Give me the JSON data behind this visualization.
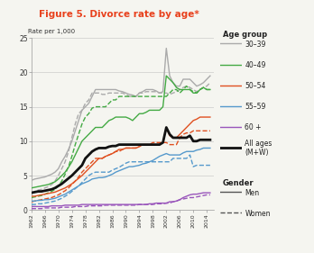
{
  "title": "Figure 5. Divorce rate by age*",
  "ylabel": "Rate per 1,000",
  "xlim": [
    1962,
    2016
  ],
  "ylim": [
    0,
    25
  ],
  "yticks": [
    0,
    5,
    10,
    15,
    20,
    25
  ],
  "xticks": [
    1962,
    1966,
    1970,
    1974,
    1978,
    1982,
    1986,
    1990,
    1994,
    1998,
    2002,
    2006,
    2010,
    2014
  ],
  "title_color": "#e8401c",
  "background_color": "#f5f5f0",
  "series": {
    "30_39_men": {
      "color": "#aaaaaa",
      "lw": 1.0,
      "ls": "-",
      "years": [
        1962,
        1963,
        1964,
        1965,
        1966,
        1967,
        1968,
        1969,
        1970,
        1971,
        1972,
        1973,
        1974,
        1975,
        1976,
        1977,
        1978,
        1979,
        1980,
        1981,
        1982,
        1983,
        1984,
        1985,
        1986,
        1987,
        1988,
        1989,
        1990,
        1991,
        1992,
        1993,
        1994,
        1995,
        1996,
        1997,
        1998,
        1999,
        2000,
        2001,
        2002,
        2003,
        2004,
        2005,
        2006,
        2007,
        2008,
        2009,
        2010,
        2011,
        2012,
        2013,
        2014,
        2015
      ],
      "values": [
        4.3,
        4.5,
        4.6,
        4.7,
        4.8,
        5.0,
        5.2,
        5.5,
        6.0,
        7.0,
        7.8,
        8.8,
        10.0,
        11.5,
        13.0,
        14.5,
        15.0,
        15.5,
        16.5,
        17.5,
        17.5,
        17.5,
        17.5,
        17.5,
        17.5,
        17.5,
        17.3,
        17.2,
        17.0,
        16.8,
        16.7,
        16.5,
        17.0,
        17.2,
        17.5,
        17.5,
        17.5,
        17.3,
        17.0,
        17.2,
        23.5,
        19.5,
        18.5,
        18.0,
        18.0,
        19.0,
        19.0,
        19.0,
        18.5,
        18.0,
        18.2,
        18.5,
        19.0,
        19.5
      ]
    },
    "30_39_women": {
      "color": "#aaaaaa",
      "lw": 1.0,
      "ls": "--",
      "years": [
        1962,
        1963,
        1964,
        1965,
        1966,
        1967,
        1968,
        1969,
        1970,
        1971,
        1972,
        1973,
        1974,
        1975,
        1976,
        1977,
        1978,
        1979,
        1980,
        1981,
        1982,
        1983,
        1984,
        1985,
        1986,
        1987,
        1988,
        1989,
        1990,
        1991,
        1992,
        1993,
        1994,
        1995,
        1996,
        1997,
        1998,
        1999,
        2000,
        2001,
        2002,
        2003,
        2004,
        2005,
        2006,
        2007,
        2008,
        2009,
        2010,
        2011,
        2012,
        2013,
        2014,
        2015
      ],
      "values": [
        2.5,
        2.7,
        2.9,
        3.0,
        3.2,
        3.4,
        3.7,
        4.2,
        5.0,
        6.0,
        7.0,
        8.5,
        10.5,
        12.5,
        14.0,
        14.5,
        15.5,
        16.0,
        17.0,
        17.0,
        17.0,
        16.8,
        16.8,
        17.0,
        17.0,
        17.0,
        17.0,
        17.0,
        16.8,
        16.5,
        16.5,
        16.5,
        17.0,
        17.0,
        17.2,
        17.2,
        17.2,
        17.2,
        17.0,
        17.0,
        17.0,
        16.8,
        17.0,
        17.2,
        17.5,
        17.8,
        18.0,
        17.8,
        17.5,
        17.2,
        17.5,
        17.8,
        18.0,
        18.5
      ]
    },
    "40_49_men": {
      "color": "#44aa44",
      "lw": 1.0,
      "ls": "-",
      "years": [
        1962,
        1963,
        1964,
        1965,
        1966,
        1967,
        1968,
        1969,
        1970,
        1971,
        1972,
        1973,
        1974,
        1975,
        1976,
        1977,
        1978,
        1979,
        1980,
        1981,
        1982,
        1983,
        1984,
        1985,
        1986,
        1987,
        1988,
        1989,
        1990,
        1991,
        1992,
        1993,
        1994,
        1995,
        1996,
        1997,
        1998,
        1999,
        2000,
        2001,
        2002,
        2003,
        2004,
        2005,
        2006,
        2007,
        2008,
        2009,
        2010,
        2011,
        2012,
        2013,
        2014,
        2015
      ],
      "values": [
        3.2,
        3.3,
        3.4,
        3.5,
        3.6,
        3.7,
        3.9,
        4.1,
        4.5,
        5.0,
        5.5,
        6.2,
        7.0,
        8.0,
        9.0,
        10.0,
        10.5,
        11.0,
        11.5,
        12.0,
        12.0,
        12.0,
        12.5,
        13.0,
        13.2,
        13.5,
        13.5,
        13.5,
        13.5,
        13.3,
        13.0,
        13.5,
        14.0,
        14.0,
        14.2,
        14.5,
        14.5,
        14.5,
        14.5,
        15.0,
        19.5,
        19.0,
        18.5,
        17.8,
        17.5,
        17.5,
        17.5,
        17.5,
        17.0,
        17.0,
        17.5,
        17.8,
        17.5,
        17.5
      ]
    },
    "40_49_women": {
      "color": "#44aa44",
      "lw": 1.0,
      "ls": "--",
      "years": [
        1962,
        1963,
        1964,
        1965,
        1966,
        1967,
        1968,
        1969,
        1970,
        1971,
        1972,
        1973,
        1974,
        1975,
        1976,
        1977,
        1978,
        1979,
        1980,
        1981,
        1982,
        1983,
        1984,
        1985,
        1986,
        1987,
        1988,
        1989,
        1990,
        1991,
        1992,
        1993,
        1994,
        1995,
        1996,
        1997,
        1998,
        1999,
        2000,
        2001,
        2002,
        2003,
        2004,
        2005,
        2006,
        2007,
        2008,
        2009,
        2010,
        2011,
        2012,
        2013,
        2014,
        2015
      ],
      "values": [
        1.8,
        1.9,
        2.0,
        2.1,
        2.3,
        2.5,
        2.7,
        3.0,
        3.5,
        4.2,
        5.2,
        6.3,
        7.8,
        9.5,
        11.0,
        12.5,
        13.5,
        14.0,
        14.8,
        15.0,
        15.0,
        15.0,
        15.0,
        15.5,
        16.0,
        16.0,
        16.5,
        16.5,
        16.5,
        16.5,
        16.5,
        16.5,
        16.5,
        16.5,
        16.5,
        16.5,
        16.5,
        16.5,
        16.5,
        16.5,
        16.5,
        17.0,
        17.5,
        17.5,
        17.0,
        17.5,
        18.0,
        17.5,
        17.2,
        17.0,
        17.5,
        17.8,
        17.5,
        17.5
      ]
    },
    "50_54_men": {
      "color": "#e05020",
      "lw": 1.0,
      "ls": "-",
      "years": [
        1962,
        1963,
        1964,
        1965,
        1966,
        1967,
        1968,
        1969,
        1970,
        1971,
        1972,
        1973,
        1974,
        1975,
        1976,
        1977,
        1978,
        1979,
        1980,
        1981,
        1982,
        1983,
        1984,
        1985,
        1986,
        1987,
        1988,
        1989,
        1990,
        1991,
        1992,
        1993,
        1994,
        1995,
        1996,
        1997,
        1998,
        1999,
        2000,
        2001,
        2002,
        2003,
        2004,
        2005,
        2006,
        2007,
        2008,
        2009,
        2010,
        2011,
        2012,
        2013,
        2014,
        2015
      ],
      "values": [
        2.0,
        2.0,
        2.1,
        2.2,
        2.3,
        2.4,
        2.5,
        2.6,
        2.8,
        3.0,
        3.2,
        3.5,
        3.8,
        4.2,
        4.6,
        5.0,
        5.5,
        6.0,
        6.5,
        7.0,
        7.5,
        7.5,
        7.8,
        8.0,
        8.2,
        8.5,
        8.8,
        8.8,
        9.0,
        9.0,
        9.0,
        9.0,
        9.2,
        9.5,
        9.5,
        9.5,
        9.5,
        9.5,
        9.5,
        9.8,
        12.0,
        10.8,
        10.5,
        10.5,
        11.0,
        11.5,
        12.0,
        12.5,
        13.0,
        13.2,
        13.5,
        13.5,
        13.5,
        13.5
      ]
    },
    "50_54_women": {
      "color": "#e05020",
      "lw": 1.0,
      "ls": "--",
      "years": [
        1962,
        1963,
        1964,
        1965,
        1966,
        1967,
        1968,
        1969,
        1970,
        1971,
        1972,
        1973,
        1974,
        1975,
        1976,
        1977,
        1978,
        1979,
        1980,
        1981,
        1982,
        1983,
        1984,
        1985,
        1986,
        1987,
        1988,
        1989,
        1990,
        1991,
        1992,
        1993,
        1994,
        1995,
        1996,
        1997,
        1998,
        1999,
        2000,
        2001,
        2002,
        2003,
        2004,
        2005,
        2006,
        2007,
        2008,
        2009,
        2010,
        2011,
        2012,
        2013,
        2014,
        2015
      ],
      "values": [
        1.2,
        1.3,
        1.4,
        1.5,
        1.6,
        1.7,
        1.8,
        2.0,
        2.2,
        2.5,
        2.8,
        3.2,
        3.7,
        4.2,
        4.8,
        5.5,
        6.0,
        6.5,
        7.0,
        7.5,
        7.5,
        7.5,
        7.8,
        8.0,
        8.2,
        8.5,
        8.5,
        8.8,
        9.0,
        9.0,
        9.0,
        9.0,
        9.5,
        9.5,
        9.5,
        9.5,
        9.8,
        9.8,
        9.8,
        9.8,
        9.8,
        9.5,
        9.5,
        9.5,
        10.5,
        11.0,
        11.2,
        11.2,
        11.5,
        11.5,
        11.5,
        11.5,
        11.5,
        11.5
      ]
    },
    "55_59_men": {
      "color": "#5599cc",
      "lw": 1.0,
      "ls": "-",
      "years": [
        1962,
        1963,
        1964,
        1965,
        1966,
        1967,
        1968,
        1969,
        1970,
        1971,
        1972,
        1973,
        1974,
        1975,
        1976,
        1977,
        1978,
        1979,
        1980,
        1981,
        1982,
        1983,
        1984,
        1985,
        1986,
        1987,
        1988,
        1989,
        1990,
        1991,
        1992,
        1993,
        1994,
        1995,
        1996,
        1997,
        1998,
        1999,
        2000,
        2001,
        2002,
        2003,
        2004,
        2005,
        2006,
        2007,
        2008,
        2009,
        2010,
        2011,
        2012,
        2013,
        2014,
        2015
      ],
      "values": [
        1.3,
        1.3,
        1.4,
        1.4,
        1.5,
        1.5,
        1.6,
        1.7,
        1.9,
        2.1,
        2.3,
        2.6,
        2.9,
        3.2,
        3.5,
        3.8,
        4.0,
        4.2,
        4.5,
        4.6,
        4.7,
        4.7,
        4.8,
        5.0,
        5.2,
        5.5,
        5.7,
        5.9,
        6.1,
        6.3,
        6.3,
        6.4,
        6.5,
        6.7,
        6.8,
        7.0,
        7.2,
        7.5,
        7.8,
        8.0,
        8.2,
        8.0,
        8.0,
        8.0,
        8.0,
        8.3,
        8.5,
        8.5,
        8.5,
        8.7,
        8.8,
        9.0,
        9.0,
        9.0
      ]
    },
    "55_59_women": {
      "color": "#5599cc",
      "lw": 1.0,
      "ls": "--",
      "years": [
        1962,
        1963,
        1964,
        1965,
        1966,
        1967,
        1968,
        1969,
        1970,
        1971,
        1972,
        1973,
        1974,
        1975,
        1976,
        1977,
        1978,
        1979,
        1980,
        1981,
        1982,
        1983,
        1984,
        1985,
        1986,
        1987,
        1988,
        1989,
        1990,
        1991,
        1992,
        1993,
        1994,
        1995,
        1996,
        1997,
        1998,
        1999,
        2000,
        2001,
        2002,
        2003,
        2004,
        2005,
        2006,
        2007,
        2008,
        2009,
        2010,
        2011,
        2012,
        2013,
        2014,
        2015
      ],
      "values": [
        0.8,
        0.8,
        0.9,
        0.9,
        1.0,
        1.1,
        1.2,
        1.3,
        1.5,
        1.7,
        2.0,
        2.3,
        2.7,
        3.1,
        3.5,
        4.0,
        4.5,
        5.0,
        5.3,
        5.5,
        5.5,
        5.5,
        5.5,
        5.5,
        5.8,
        6.0,
        6.2,
        6.5,
        6.8,
        7.0,
        7.0,
        7.0,
        7.0,
        7.0,
        7.0,
        7.0,
        7.0,
        7.0,
        7.0,
        7.0,
        7.0,
        7.0,
        7.5,
        7.5,
        7.5,
        7.5,
        7.5,
        8.0,
        6.3,
        6.5,
        6.5,
        6.5,
        6.5,
        6.5
      ]
    },
    "60plus_men": {
      "color": "#9955bb",
      "lw": 1.0,
      "ls": "-",
      "years": [
        1962,
        1963,
        1964,
        1965,
        1966,
        1967,
        1968,
        1969,
        1970,
        1971,
        1972,
        1973,
        1974,
        1975,
        1976,
        1977,
        1978,
        1979,
        1980,
        1981,
        1982,
        1983,
        1984,
        1985,
        1986,
        1987,
        1988,
        1989,
        1990,
        1991,
        1992,
        1993,
        1994,
        1995,
        1996,
        1997,
        1998,
        1999,
        2000,
        2001,
        2002,
        2003,
        2004,
        2005,
        2006,
        2007,
        2008,
        2009,
        2010,
        2011,
        2012,
        2013,
        2014,
        2015
      ],
      "values": [
        0.5,
        0.5,
        0.5,
        0.5,
        0.5,
        0.5,
        0.6,
        0.6,
        0.6,
        0.6,
        0.7,
        0.7,
        0.7,
        0.7,
        0.7,
        0.8,
        0.8,
        0.8,
        0.8,
        0.8,
        0.8,
        0.8,
        0.8,
        0.8,
        0.8,
        0.8,
        0.8,
        0.8,
        0.8,
        0.8,
        0.8,
        0.8,
        0.8,
        0.8,
        0.8,
        0.9,
        0.9,
        1.0,
        1.0,
        1.0,
        1.0,
        1.2,
        1.2,
        1.3,
        1.5,
        1.8,
        2.0,
        2.2,
        2.3,
        2.3,
        2.4,
        2.5,
        2.5,
        2.5
      ]
    },
    "60plus_women": {
      "color": "#9955bb",
      "lw": 1.0,
      "ls": "--",
      "years": [
        1962,
        1963,
        1964,
        1965,
        1966,
        1967,
        1968,
        1969,
        1970,
        1971,
        1972,
        1973,
        1974,
        1975,
        1976,
        1977,
        1978,
        1979,
        1980,
        1981,
        1982,
        1983,
        1984,
        1985,
        1986,
        1987,
        1988,
        1989,
        1990,
        1991,
        1992,
        1993,
        1994,
        1995,
        1996,
        1997,
        1998,
        1999,
        2000,
        2001,
        2002,
        2003,
        2004,
        2005,
        2006,
        2007,
        2008,
        2009,
        2010,
        2011,
        2012,
        2013,
        2014,
        2015
      ],
      "values": [
        0.2,
        0.2,
        0.2,
        0.2,
        0.3,
        0.3,
        0.3,
        0.3,
        0.3,
        0.4,
        0.4,
        0.4,
        0.4,
        0.5,
        0.5,
        0.5,
        0.5,
        0.6,
        0.6,
        0.6,
        0.6,
        0.6,
        0.7,
        0.7,
        0.7,
        0.7,
        0.7,
        0.7,
        0.7,
        0.7,
        0.7,
        0.7,
        0.8,
        0.8,
        0.8,
        0.8,
        0.8,
        0.9,
        0.9,
        0.9,
        1.0,
        1.0,
        1.2,
        1.3,
        1.5,
        1.6,
        1.7,
        1.8,
        1.8,
        1.9,
        2.0,
        2.1,
        2.2,
        2.2
      ]
    },
    "all_ages": {
      "color": "#111111",
      "lw": 2.0,
      "ls": "-",
      "years": [
        1962,
        1963,
        1964,
        1965,
        1966,
        1967,
        1968,
        1969,
        1970,
        1971,
        1972,
        1973,
        1974,
        1975,
        1976,
        1977,
        1978,
        1979,
        1980,
        1981,
        1982,
        1983,
        1984,
        1985,
        1986,
        1987,
        1988,
        1989,
        1990,
        1991,
        1992,
        1993,
        1994,
        1995,
        1996,
        1997,
        1998,
        1999,
        2000,
        2001,
        2002,
        2003,
        2004,
        2005,
        2006,
        2007,
        2008,
        2009,
        2010,
        2011,
        2012,
        2013,
        2014,
        2015
      ],
      "values": [
        2.5,
        2.6,
        2.7,
        2.7,
        2.8,
        2.9,
        3.0,
        3.2,
        3.5,
        3.8,
        4.2,
        4.6,
        5.0,
        5.5,
        6.0,
        6.5,
        7.5,
        8.0,
        8.5,
        8.8,
        9.0,
        9.0,
        9.0,
        9.2,
        9.3,
        9.3,
        9.5,
        9.5,
        9.5,
        9.5,
        9.5,
        9.5,
        9.5,
        9.5,
        9.5,
        9.5,
        9.5,
        9.5,
        9.5,
        9.8,
        12.0,
        11.0,
        10.5,
        10.5,
        10.5,
        10.5,
        10.5,
        10.8,
        10.0,
        10.0,
        10.2,
        10.2,
        10.2,
        10.2
      ]
    }
  }
}
